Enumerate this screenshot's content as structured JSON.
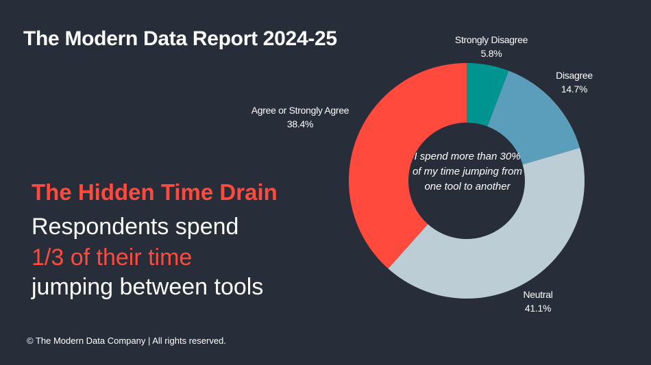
{
  "header": {
    "title": "The Modern Data Report 2024-25"
  },
  "message": {
    "headline": "The Hidden Time Drain",
    "line1": "Respondents spend",
    "line2": "1/3 of their time",
    "line3": "jumping between tools"
  },
  "footer": {
    "text": "© The Modern Data Company | All rights reserved."
  },
  "chart_data": {
    "type": "pie",
    "subtype": "donut",
    "center_label": "I spend more than 30% of my time jumping from one tool to another",
    "start": "top, clockwise",
    "slices": [
      {
        "label": "Strongly Disagree",
        "value": 5.8,
        "value_label": "5.8%",
        "color": "#009490"
      },
      {
        "label": "Disagree",
        "value": 14.7,
        "value_label": "14.7%",
        "color": "#5b9ebb"
      },
      {
        "label": "Neutral",
        "value": 41.1,
        "value_label": "41.1%",
        "color": "#bccdd6"
      },
      {
        "label": "Agree or Strongly Agree",
        "value": 38.4,
        "value_label": "38.4%",
        "color": "#ff4a3d"
      }
    ]
  }
}
